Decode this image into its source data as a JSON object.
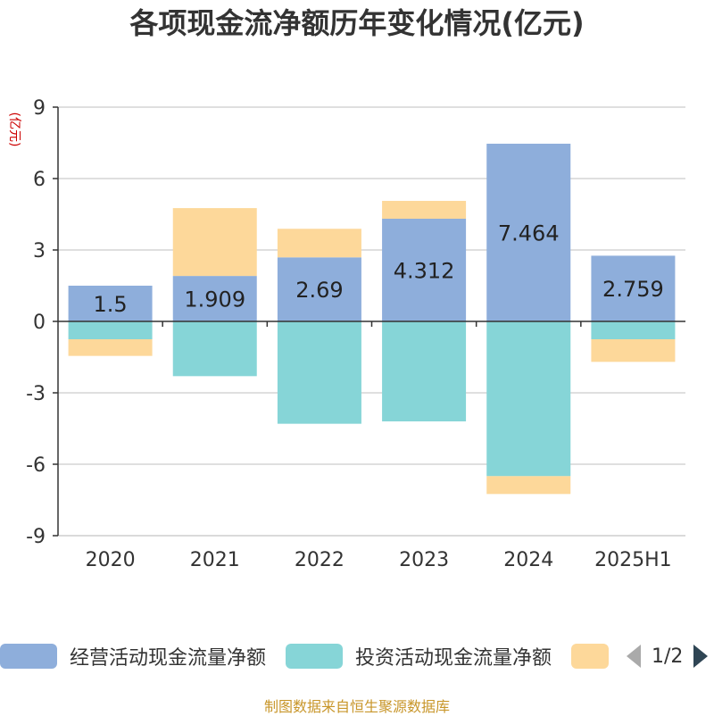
{
  "chart_data": {
    "type": "bar",
    "stacked": true,
    "title": "各项现金流净额历年变化情况(亿元)",
    "ylabel": "(亿元)",
    "ylim": [
      -9,
      9
    ],
    "yticks": [
      9,
      6,
      3,
      0,
      -3,
      -6,
      -9
    ],
    "categories": [
      "2020",
      "2021",
      "2022",
      "2023",
      "2024",
      "2025H1"
    ],
    "series": [
      {
        "name": "经营活动现金流量净额",
        "color": "#8eaedb",
        "values": [
          1.5,
          1.909,
          2.69,
          4.312,
          7.464,
          2.759
        ],
        "labels": [
          "1.5",
          "1.909",
          "2.69",
          "4.312",
          "7.464",
          "2.759"
        ]
      },
      {
        "name": "投资活动现金流量净额",
        "color": "#86d5d7",
        "values": [
          -0.75,
          -2.3,
          -4.3,
          -4.2,
          -6.5,
          -0.75
        ]
      },
      {
        "name": "",
        "color": "#fdd89a",
        "values": [
          -0.7,
          2.85,
          1.2,
          0.75,
          -0.75,
          -0.95
        ]
      }
    ],
    "grid": true,
    "legend_position": "bottom"
  },
  "legend": {
    "items": [
      {
        "label": "经营活动现金流量净额",
        "color": "#8eaedb"
      },
      {
        "label": "投资活动现金流量净额",
        "color": "#86d5d7"
      },
      {
        "label": "",
        "color": "#fdd89a"
      }
    ],
    "page_indicator": "1/2"
  },
  "source": "制图数据来自恒生聚源数据库",
  "colors": {
    "axis": "#333333",
    "grid": "#cccccc",
    "ylabel": "#cc0000",
    "source": "#c8962a"
  }
}
